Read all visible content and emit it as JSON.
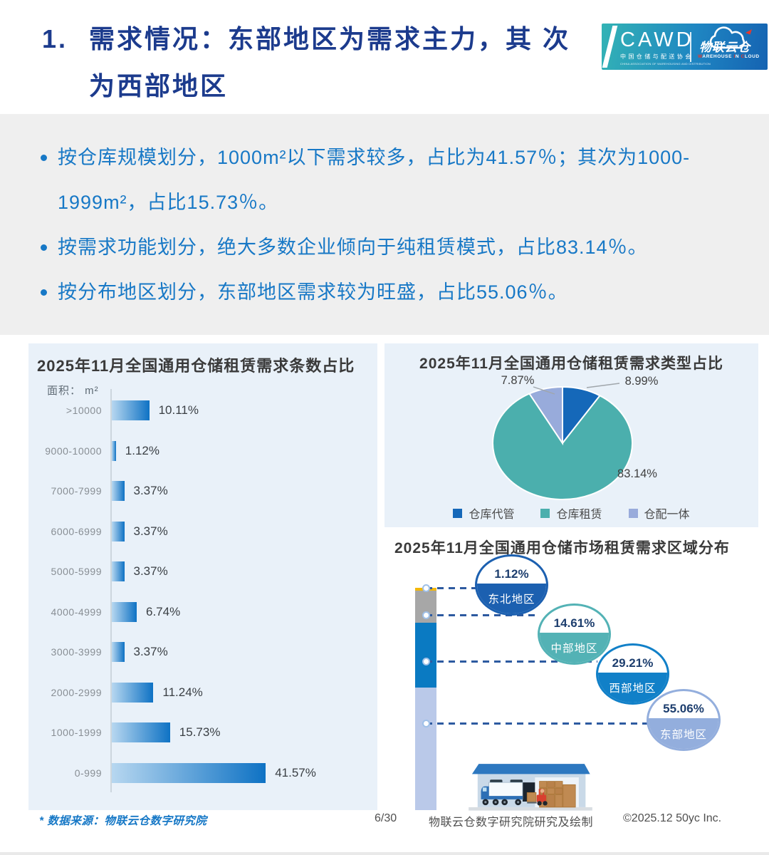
{
  "header": {
    "number": "1.",
    "title_lines": [
      "需求情况：东部地区为需求主力，其",
      "次为西部地区"
    ]
  },
  "logo": {
    "org_abbr": "CAWD",
    "org_cn": "中国仓储与配送协会",
    "org_en": "CHINA ASSOCIATION OF WAREHOUSING AND DISTRIBUTION",
    "brand_cn": "物联云仓",
    "brand_en": "WAREHOUSE IN CLOUD",
    "accent_red": "#e5392e",
    "gradient": [
      "#33b3b5",
      "#1563b2"
    ]
  },
  "summary": {
    "bullets": [
      "按仓库规模划分，1000m²以下需求较多，占比为41.57％；其次为1000-1999m²，占比15.73％。",
      "按需求功能划分，绝大多数企业倾向于纯租赁模式，占比83.14％。",
      "按分布地区划分，东部地区需求较为旺盛，占比55.06％。"
    ]
  },
  "chart_data": [
    {
      "type": "bar",
      "orientation": "horizontal",
      "title": "2025年11月全国通用仓储租赁需求条数占比",
      "ylabel": "面积： m²",
      "categories": [
        ">10000",
        "9000-10000",
        "7000-7999",
        "6000-6999",
        "5000-5999",
        "4000-4999",
        "3000-3999",
        "2000-2999",
        "1000-1999",
        "0-999"
      ],
      "values": [
        10.11,
        1.12,
        3.37,
        3.37,
        3.37,
        6.74,
        3.37,
        11.24,
        15.73,
        41.57
      ],
      "value_labels": [
        "10.11%",
        "1.12%",
        "3.37%",
        "3.37%",
        "3.37%",
        "6.74%",
        "3.37%",
        "11.24%",
        "15.73%",
        "41.57%"
      ],
      "xlim": [
        0,
        45
      ],
      "grid": false,
      "bar_gradient": [
        "#b7d7f0",
        "#0e72c4"
      ]
    },
    {
      "type": "pie",
      "title": "2025年11月全国通用仓储租赁需求类型占比",
      "start_angle_deg": 0,
      "direction": "clockwise",
      "legend_position": "bottom",
      "slices": [
        {
          "label": "仓库代管",
          "value": 8.99,
          "value_label": "8.99%",
          "color": "#1568b9"
        },
        {
          "label": "仓库租赁",
          "value": 83.14,
          "value_label": "83.14%",
          "color": "#4bafad"
        },
        {
          "label": "仓配一体",
          "value": 7.87,
          "value_label": "7.87%",
          "color": "#98abdb"
        }
      ]
    },
    {
      "type": "bar",
      "subtype": "stacked-100-with-circle-callouts",
      "title": "2025年11月全国通用仓储市场租赁需求区域分布",
      "categories": [
        "东北地区",
        "中部地区",
        "西部地区",
        "东部地区"
      ],
      "values": [
        1.12,
        14.61,
        29.21,
        55.06
      ],
      "value_labels": [
        "1.12%",
        "14.61%",
        "29.21%",
        "55.06%"
      ],
      "segment_colors": [
        "#f3b70a",
        "#a7a7a7",
        "#0a7ac2",
        "#bac9e9"
      ],
      "circle_colors": [
        "#1c60b0",
        "#53b2b5",
        "#1180c8",
        "#93aedd"
      ]
    }
  ],
  "footer": {
    "source": "* 数据来源：物联云仓数字研究院",
    "page": "6/30",
    "credit": "物联云仓数字研究院研究及绘制",
    "copyright": "©2025.12 50yc Inc."
  }
}
